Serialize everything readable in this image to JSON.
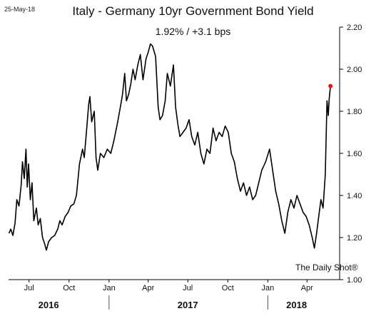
{
  "date_stamp": "25-May-18",
  "source": "The Daily Shot®",
  "chart_data": {
    "type": "line",
    "title": "Italy - Germany 10yr Government Bond Yield",
    "subtitle": "1.92%  /  +3.1 bps",
    "xlabel": "",
    "ylabel": "",
    "ylim": [
      1.0,
      2.2
    ],
    "y_ticks": [
      "1.00",
      "1.20",
      "1.40",
      "1.60",
      "1.80",
      "2.00",
      "2.20"
    ],
    "x_ticks": [
      {
        "label": "Jul",
        "x": "2016-07-01"
      },
      {
        "label": "Oct",
        "x": "2016-10-01"
      },
      {
        "label": "Jan",
        "x": "2017-01-01"
      },
      {
        "label": "Apr",
        "x": "2017-04-01"
      },
      {
        "label": "Jul",
        "x": "2017-07-01"
      },
      {
        "label": "Oct",
        "x": "2017-10-01"
      },
      {
        "label": "Jan",
        "x": "2018-01-01"
      },
      {
        "label": "Apr",
        "x": "2018-04-01"
      }
    ],
    "year_labels": [
      {
        "label": "2016",
        "x": "2016-08-15"
      },
      {
        "label": "2017",
        "x": "2017-07-01"
      },
      {
        "label": "2018",
        "x": "2018-03-08"
      }
    ],
    "year_dividers": [
      "2017-01-01",
      "2018-01-01"
    ],
    "x_range": [
      "2016-05-15",
      "2018-06-15"
    ],
    "grid": false,
    "axis_side": "right",
    "line_color": "#000000",
    "marker_color": "#e8141c",
    "last_point": {
      "x": "2018-05-25",
      "y": 1.92
    },
    "series": [
      {
        "values": [
          [
            "2016-05-16",
            1.22
          ],
          [
            "2016-05-20",
            1.24
          ],
          [
            "2016-05-25",
            1.21
          ],
          [
            "2016-05-30",
            1.27
          ],
          [
            "2016-06-03",
            1.38
          ],
          [
            "2016-06-08",
            1.35
          ],
          [
            "2016-06-13",
            1.45
          ],
          [
            "2016-06-16",
            1.56
          ],
          [
            "2016-06-20",
            1.48
          ],
          [
            "2016-06-24",
            1.62
          ],
          [
            "2016-06-27",
            1.44
          ],
          [
            "2016-06-30",
            1.55
          ],
          [
            "2016-07-04",
            1.38
          ],
          [
            "2016-07-08",
            1.46
          ],
          [
            "2016-07-12",
            1.28
          ],
          [
            "2016-07-18",
            1.34
          ],
          [
            "2016-07-22",
            1.26
          ],
          [
            "2016-07-27",
            1.29
          ],
          [
            "2016-08-01",
            1.2
          ],
          [
            "2016-08-06",
            1.17
          ],
          [
            "2016-08-10",
            1.14
          ],
          [
            "2016-08-15",
            1.18
          ],
          [
            "2016-08-22",
            1.2
          ],
          [
            "2016-08-29",
            1.21
          ],
          [
            "2016-09-05",
            1.24
          ],
          [
            "2016-09-10",
            1.28
          ],
          [
            "2016-09-15",
            1.26
          ],
          [
            "2016-09-22",
            1.3
          ],
          [
            "2016-09-29",
            1.32
          ],
          [
            "2016-10-05",
            1.35
          ],
          [
            "2016-10-12",
            1.36
          ],
          [
            "2016-10-18",
            1.4
          ],
          [
            "2016-10-25",
            1.55
          ],
          [
            "2016-11-01",
            1.62
          ],
          [
            "2016-11-05",
            1.58
          ],
          [
            "2016-11-10",
            1.7
          ],
          [
            "2016-11-15",
            1.83
          ],
          [
            "2016-11-18",
            1.87
          ],
          [
            "2016-11-22",
            1.75
          ],
          [
            "2016-11-28",
            1.8
          ],
          [
            "2016-12-02",
            1.58
          ],
          [
            "2016-12-06",
            1.52
          ],
          [
            "2016-12-12",
            1.6
          ],
          [
            "2016-12-20",
            1.58
          ],
          [
            "2016-12-28",
            1.62
          ],
          [
            "2017-01-05",
            1.6
          ],
          [
            "2017-01-12",
            1.66
          ],
          [
            "2017-01-20",
            1.74
          ],
          [
            "2017-01-27",
            1.82
          ],
          [
            "2017-02-01",
            1.88
          ],
          [
            "2017-02-06",
            1.98
          ],
          [
            "2017-02-10",
            1.85
          ],
          [
            "2017-02-15",
            1.88
          ],
          [
            "2017-02-20",
            1.93
          ],
          [
            "2017-02-25",
            2.0
          ],
          [
            "2017-03-02",
            1.95
          ],
          [
            "2017-03-08",
            2.02
          ],
          [
            "2017-03-14",
            2.07
          ],
          [
            "2017-03-20",
            1.95
          ],
          [
            "2017-03-27",
            2.05
          ],
          [
            "2017-04-01",
            2.08
          ],
          [
            "2017-04-06",
            2.12
          ],
          [
            "2017-04-11",
            2.11
          ],
          [
            "2017-04-18",
            2.06
          ],
          [
            "2017-04-24",
            1.82
          ],
          [
            "2017-04-28",
            1.76
          ],
          [
            "2017-05-04",
            1.78
          ],
          [
            "2017-05-10",
            1.85
          ],
          [
            "2017-05-15",
            1.98
          ],
          [
            "2017-05-22",
            1.92
          ],
          [
            "2017-05-29",
            2.02
          ],
          [
            "2017-06-03",
            1.82
          ],
          [
            "2017-06-08",
            1.74
          ],
          [
            "2017-06-13",
            1.68
          ],
          [
            "2017-06-20",
            1.7
          ],
          [
            "2017-06-27",
            1.72
          ],
          [
            "2017-07-04",
            1.76
          ],
          [
            "2017-07-10",
            1.68
          ],
          [
            "2017-07-17",
            1.64
          ],
          [
            "2017-07-24",
            1.7
          ],
          [
            "2017-07-31",
            1.6
          ],
          [
            "2017-08-07",
            1.55
          ],
          [
            "2017-08-14",
            1.62
          ],
          [
            "2017-08-21",
            1.6
          ],
          [
            "2017-08-28",
            1.72
          ],
          [
            "2017-09-04",
            1.66
          ],
          [
            "2017-09-11",
            1.7
          ],
          [
            "2017-09-18",
            1.68
          ],
          [
            "2017-09-25",
            1.73
          ],
          [
            "2017-10-02",
            1.7
          ],
          [
            "2017-10-09",
            1.6
          ],
          [
            "2017-10-16",
            1.56
          ],
          [
            "2017-10-23",
            1.48
          ],
          [
            "2017-10-30",
            1.42
          ],
          [
            "2017-11-06",
            1.46
          ],
          [
            "2017-11-13",
            1.4
          ],
          [
            "2017-11-20",
            1.44
          ],
          [
            "2017-11-27",
            1.38
          ],
          [
            "2017-12-04",
            1.4
          ],
          [
            "2017-12-11",
            1.46
          ],
          [
            "2017-12-18",
            1.52
          ],
          [
            "2017-12-27",
            1.56
          ],
          [
            "2018-01-05",
            1.62
          ],
          [
            "2018-01-12",
            1.52
          ],
          [
            "2018-01-19",
            1.42
          ],
          [
            "2018-01-26",
            1.36
          ],
          [
            "2018-02-02",
            1.28
          ],
          [
            "2018-02-09",
            1.22
          ],
          [
            "2018-02-16",
            1.32
          ],
          [
            "2018-02-23",
            1.38
          ],
          [
            "2018-03-02",
            1.34
          ],
          [
            "2018-03-09",
            1.4
          ],
          [
            "2018-03-16",
            1.36
          ],
          [
            "2018-03-23",
            1.32
          ],
          [
            "2018-03-30",
            1.3
          ],
          [
            "2018-04-06",
            1.26
          ],
          [
            "2018-04-13",
            1.2
          ],
          [
            "2018-04-18",
            1.15
          ],
          [
            "2018-04-23",
            1.22
          ],
          [
            "2018-04-28",
            1.3
          ],
          [
            "2018-05-03",
            1.38
          ],
          [
            "2018-05-08",
            1.34
          ],
          [
            "2018-05-13",
            1.5
          ],
          [
            "2018-05-17",
            1.85
          ],
          [
            "2018-05-20",
            1.78
          ],
          [
            "2018-05-22",
            1.86
          ],
          [
            "2018-05-25",
            1.92
          ]
        ]
      }
    ]
  }
}
